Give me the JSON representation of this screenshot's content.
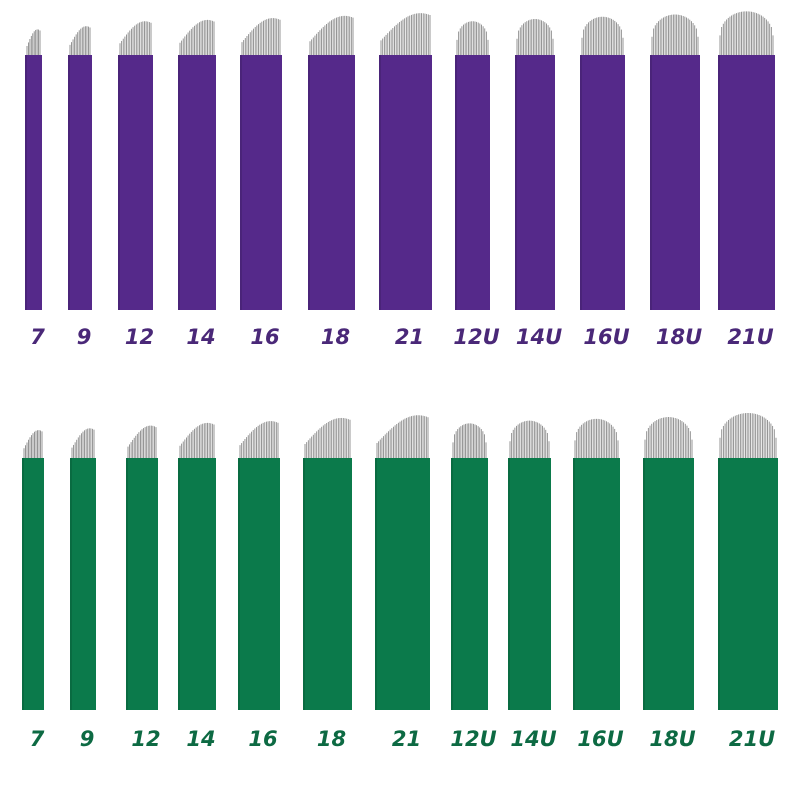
{
  "rows": [
    {
      "labels": [
        "7",
        "9",
        "12",
        "14",
        "16",
        "18",
        "21",
        "12U",
        "14U",
        "16U",
        "18U",
        "21U"
      ]
    },
    {
      "labels": [
        "7",
        "9",
        "12",
        "14",
        "16",
        "18",
        "21",
        "12U",
        "14U",
        "16U",
        "18U",
        "21U"
      ]
    }
  ]
}
